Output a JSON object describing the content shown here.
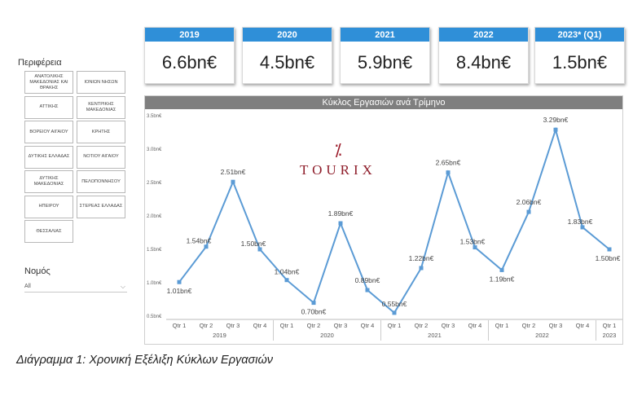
{
  "filters": {
    "region_title": "Περιφέρεια",
    "regions": [
      "ΑΝΑΤΟΛΙΚΗΣ ΜΑΚΕΔΟΝΙΑΣ ΚΑΙ ΘΡΑΚΗΣ",
      "ΙΟΝΙΩΝ ΝΗΣΩΝ",
      "ΑΤΤΙΚΗΣ",
      "ΚΕΝΤΡΙΚΗΣ ΜΑΚΕΔΟΝΙΑΣ",
      "ΒΟΡΕΙΟΥ ΑΙΓΑΙΟΥ",
      "ΚΡΗΤΗΣ",
      "ΔΥΤΙΚΗΣ ΕΛΛΑΔΑΣ",
      "ΝΟΤΙΟΥ ΑΙΓΑΙΟΥ",
      "ΔΥΤΙΚΗΣ ΜΑΚΕΔΟΝΙΑΣ",
      "ΠΕΛΟΠΟΝΝΗΣΟΥ",
      "ΗΠΕΙΡΟΥ",
      "ΣΤΕΡΕΑΣ ΕΛΛΑΔΑΣ",
      "ΘΕΣΣΑΛΙΑΣ"
    ],
    "nomos_title": "Νομός",
    "nomos_value": "All"
  },
  "kpis": [
    {
      "label": "2019",
      "value": "6.6bn€"
    },
    {
      "label": "2020",
      "value": "4.5bn€"
    },
    {
      "label": "2021",
      "value": "5.9bn€"
    },
    {
      "label": "2022",
      "value": "8.4bn€"
    },
    {
      "label": "2023* (Q1)",
      "value": "1.5bn€"
    }
  ],
  "logo": {
    "text": "TOURIX",
    "mark": "⁒"
  },
  "caption": "Διάγραμμα 1: Χρονική Εξέλιξη Κύκλων Εργασιών",
  "colors": {
    "accent": "#2f8fd8",
    "line": "#5b9bd5",
    "title_bar": "#7f7f7f",
    "logo": "#8e1d2a"
  },
  "chart_data": {
    "type": "line",
    "title": "Κύκλος Εργασιών ανά Τρίμηνο",
    "quarters": [
      "Qtr 1",
      "Qtr 2",
      "Qtr 3",
      "Qtr 4",
      "Qtr 1",
      "Qtr 2",
      "Qtr 3",
      "Qtr 4",
      "Qtr 1",
      "Qtr 2",
      "Qtr 3",
      "Qtr 4",
      "Qtr 1",
      "Qtr 2",
      "Qtr 3",
      "Qtr 4",
      "Qtr 1"
    ],
    "years": [
      {
        "label": "2019",
        "count": 4
      },
      {
        "label": "2020",
        "count": 4
      },
      {
        "label": "2021",
        "count": 4
      },
      {
        "label": "2022",
        "count": 4
      },
      {
        "label": "2023",
        "count": 1
      }
    ],
    "values": [
      1.01,
      1.54,
      2.51,
      1.5,
      1.04,
      0.7,
      1.89,
      0.89,
      0.55,
      1.22,
      2.65,
      1.53,
      1.19,
      2.06,
      3.29,
      1.83,
      1.5
    ],
    "data_labels": [
      "1.01bn€",
      "1.54bn€",
      "2.51bn€",
      "1.50bn€",
      "1.04bn€",
      "0.70bn€",
      "1.89bn€",
      "0.89bn€",
      "0.55bn€",
      "1.22bn€",
      "2.65bn€",
      "1.53bn€",
      "1.19bn€",
      "2.06bn€",
      "3.29bn€",
      "1.83bn€",
      "1.50bn€"
    ],
    "y_ticks": [
      "0.5bn€",
      "1.0bn€",
      "1.5bn€",
      "2.0bn€",
      "2.5bn€",
      "3.0bn€",
      "3.5bn€"
    ],
    "ylim": [
      0.5,
      3.5
    ],
    "grid": false
  }
}
